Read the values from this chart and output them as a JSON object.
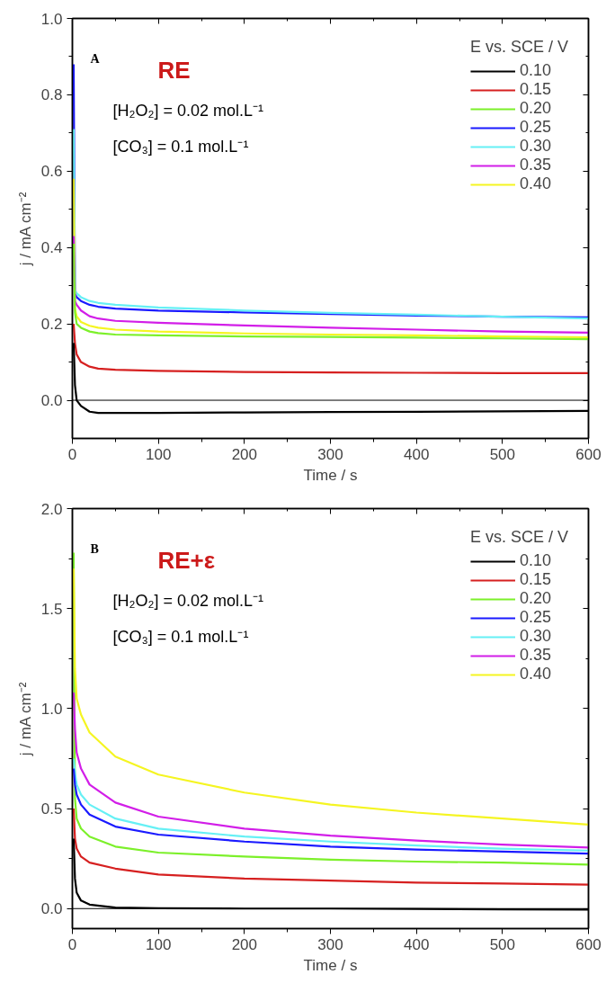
{
  "chart_data": [
    {
      "type": "line",
      "xlabel": "Time / s",
      "ylabel": "j / mA cm⁻²",
      "legend_title": "E vs. SCE / V",
      "legend": "top right",
      "grid": false,
      "annotations": [
        "A",
        "RE",
        "[H₂O₂] = 0.02 mol.L⁻¹",
        "[CO₃] = 0.1 mol.L⁻¹"
      ],
      "x": [
        1.5,
        3,
        5,
        10,
        20,
        30,
        50,
        100,
        200,
        300,
        400,
        500,
        600
      ],
      "xlim": [
        0,
        600
      ],
      "xticks": [
        0,
        100,
        200,
        300,
        400,
        500,
        600
      ],
      "ylim": [
        -0.1,
        1.0
      ],
      "yticks": [
        {
          "value": 0,
          "label": "0.0"
        },
        0.2,
        0.4,
        0.6,
        0.8,
        {
          "value": 1,
          "label": "1.0"
        }
      ],
      "ref_lines": [
        {
          "axis": "y",
          "value": 0,
          "color": "#000000"
        }
      ],
      "series": [
        {
          "name": "0.10",
          "color": "#000000",
          "values": [
            0.15,
            0.04,
            0.0,
            -0.015,
            -0.03,
            -0.033,
            -0.033,
            -0.033,
            -0.032,
            -0.031,
            -0.03,
            -0.029,
            -0.028
          ]
        },
        {
          "name": "0.15",
          "color": "#d62020",
          "values": [
            0.2,
            0.15,
            0.12,
            0.1,
            0.088,
            0.083,
            0.08,
            0.077,
            0.074,
            0.073,
            0.072,
            0.071,
            0.071
          ]
        },
        {
          "name": "0.20",
          "color": "#7cf02a",
          "values": [
            0.41,
            0.23,
            0.2,
            0.19,
            0.18,
            0.176,
            0.172,
            0.17,
            0.167,
            0.166,
            0.164,
            0.162,
            0.16
          ]
        },
        {
          "name": "0.25",
          "color": "#1a1aff",
          "values": [
            0.88,
            0.28,
            0.27,
            0.26,
            0.25,
            0.245,
            0.24,
            0.235,
            0.23,
            0.226,
            0.222,
            0.219,
            0.217
          ]
        },
        {
          "name": "0.30",
          "color": "#66f0f5",
          "values": [
            0.71,
            0.29,
            0.28,
            0.27,
            0.26,
            0.255,
            0.25,
            0.243,
            0.235,
            0.229,
            0.224,
            0.219,
            0.214
          ]
        },
        {
          "name": "0.35",
          "color": "#d21ee8",
          "values": [
            0.43,
            0.26,
            0.25,
            0.235,
            0.22,
            0.214,
            0.208,
            0.203,
            0.196,
            0.19,
            0.185,
            0.18,
            0.177
          ]
        },
        {
          "name": "0.40",
          "color": "#f5f522",
          "values": [
            0.58,
            0.24,
            0.22,
            0.205,
            0.195,
            0.19,
            0.185,
            0.18,
            0.175,
            0.172,
            0.17,
            0.167,
            0.165
          ]
        }
      ]
    },
    {
      "type": "line",
      "xlabel": "Time / s",
      "ylabel": "j / mA cm⁻²",
      "legend_title": "E vs. SCE / V",
      "legend": "top right",
      "grid": false,
      "annotations": [
        "B",
        "RE+ε",
        "[H₂O₂] = 0.02 mol.L⁻¹",
        "[CO₃] = 0.1 mol.L⁻¹"
      ],
      "x": [
        1.5,
        3,
        5,
        10,
        20,
        50,
        100,
        200,
        300,
        400,
        500,
        600
      ],
      "xlim": [
        0,
        600
      ],
      "xticks": [
        0,
        100,
        200,
        300,
        400,
        500,
        600
      ],
      "ylim": [
        -0.1,
        2.0
      ],
      "yticks": [
        {
          "value": 0,
          "label": "0.0"
        },
        0.5,
        {
          "value": 1,
          "label": "1.0"
        },
        1.5,
        {
          "value": 2,
          "label": "2.0"
        }
      ],
      "ref_lines": [
        {
          "axis": "y",
          "value": 0,
          "color": "#000000"
        }
      ],
      "series": [
        {
          "name": "0.10",
          "color": "#000000",
          "values": [
            0.35,
            0.15,
            0.08,
            0.04,
            0.02,
            0.005,
            0.002,
            0.0,
            0.0,
            -0.002,
            -0.004,
            -0.005
          ]
        },
        {
          "name": "0.15",
          "color": "#d62020",
          "values": [
            0.5,
            0.35,
            0.3,
            0.26,
            0.23,
            0.2,
            0.17,
            0.15,
            0.14,
            0.13,
            0.125,
            0.12
          ]
        },
        {
          "name": "0.20",
          "color": "#7cf02a",
          "values": [
            1.78,
            0.55,
            0.45,
            0.4,
            0.36,
            0.31,
            0.28,
            0.26,
            0.245,
            0.235,
            0.23,
            0.22
          ]
        },
        {
          "name": "0.25",
          "color": "#1a1aff",
          "values": [
            0.7,
            0.62,
            0.57,
            0.52,
            0.47,
            0.41,
            0.37,
            0.335,
            0.31,
            0.295,
            0.285,
            0.275
          ]
        },
        {
          "name": "0.30",
          "color": "#66f0f5",
          "values": [
            0.75,
            0.68,
            0.62,
            0.57,
            0.52,
            0.45,
            0.4,
            0.36,
            0.335,
            0.315,
            0.3,
            0.29
          ]
        },
        {
          "name": "0.35",
          "color": "#d21ee8",
          "values": [
            1.08,
            0.9,
            0.78,
            0.7,
            0.62,
            0.53,
            0.46,
            0.4,
            0.365,
            0.34,
            0.32,
            0.305
          ]
        },
        {
          "name": "0.40",
          "color": "#f5f522",
          "values": [
            1.7,
            1.2,
            1.05,
            0.97,
            0.88,
            0.76,
            0.67,
            0.58,
            0.52,
            0.48,
            0.45,
            0.42
          ]
        }
      ]
    }
  ]
}
